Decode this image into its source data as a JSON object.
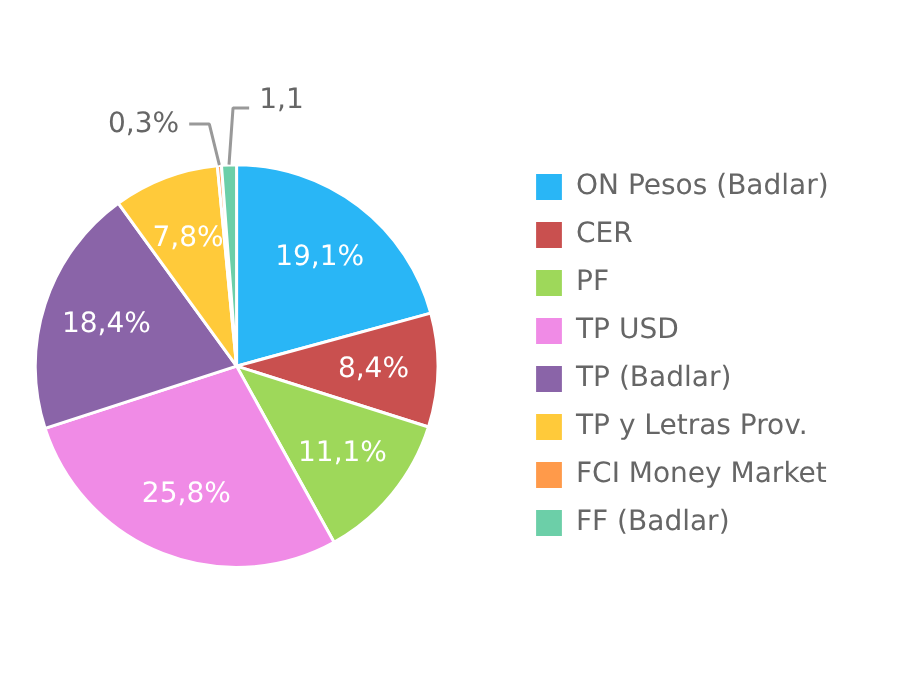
{
  "chart_data": {
    "type": "pie",
    "categories": [
      "ON Pesos (Badlar)",
      "CER",
      "PF",
      "TP USD",
      "TP (Badlar)",
      "TP y Letras Prov.",
      "FCI Money Market",
      "FF (Badlar)"
    ],
    "values": [
      19.1,
      8.4,
      11.1,
      25.8,
      18.4,
      7.8,
      0.3,
      1.1
    ],
    "value_labels": [
      "19,1%",
      "8,4%",
      "11,1%",
      "25,8%",
      "18,4%",
      "7,8%",
      "0,3%",
      "1,1"
    ],
    "colors": [
      "#29b6f6",
      "#c9504f",
      "#9ed85a",
      "#f08be6",
      "#8a64a8",
      "#ffca3a",
      "#ff9a4a",
      "#6ccfa8"
    ],
    "legend": "right"
  }
}
